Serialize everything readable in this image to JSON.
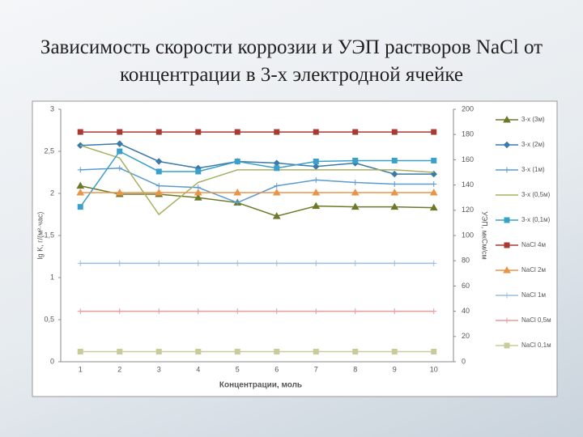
{
  "title": "Зависимость скорости коррозии и УЭП растворов NaCl от концентрации в 3-х электродной ячейке",
  "chart_data": {
    "type": "line",
    "xlabel": "Концентрации, моль",
    "ylabel": "lg K, г/(м²·час)",
    "y2label": "УЭП, мкСм/см",
    "categories": [
      1,
      2,
      3,
      4,
      5,
      6,
      7,
      8,
      9,
      10
    ],
    "ylim": [
      0,
      3
    ],
    "yticks": [
      0,
      {
        "value": 0.5,
        "label": "0,5"
      },
      1,
      {
        "value": 1.5,
        "label": "1,5"
      },
      2,
      {
        "value": 2.5,
        "label": "2,5"
      },
      3
    ],
    "y2lim": [
      0,
      200
    ],
    "y2ticks": [
      0,
      20,
      40,
      60,
      80,
      100,
      120,
      140,
      160,
      180,
      200
    ],
    "series": [
      {
        "name": "3-х (3м)",
        "color": "#6b7a2a",
        "marker": "triangle",
        "values": [
          2.09,
          1.99,
          1.99,
          1.95,
          1.89,
          1.73,
          1.85,
          1.84,
          1.84,
          1.83
        ]
      },
      {
        "name": "3-х (2м)",
        "color": "#3a7aa8",
        "marker": "diamond",
        "values": [
          2.57,
          2.59,
          2.38,
          2.3,
          2.38,
          2.36,
          2.32,
          2.36,
          2.23,
          2.23
        ]
      },
      {
        "name": "3-х (1м)",
        "color": "#5a9bd0",
        "marker": "plus",
        "values": [
          2.28,
          2.3,
          2.09,
          2.07,
          1.89,
          2.09,
          2.16,
          2.13,
          2.11,
          2.11
        ]
      },
      {
        "name": "3-х (0,5м)",
        "color": "#a8b060",
        "marker": "none",
        "values": [
          2.57,
          2.42,
          1.75,
          2.13,
          2.28,
          2.28,
          2.28,
          2.28,
          2.28,
          2.25
        ]
      },
      {
        "name": "3-х (0,1м)",
        "color": "#3aa0c8",
        "marker": "square",
        "values": [
          1.84,
          2.5,
          2.26,
          2.26,
          2.38,
          2.3,
          2.38,
          2.39,
          2.39,
          2.39
        ]
      },
      {
        "name": "NaCl 4м",
        "color": "#a83a32",
        "marker": "square",
        "axis": "y2",
        "values": [
          182,
          182,
          182,
          182,
          182,
          182,
          182,
          182,
          182,
          182
        ]
      },
      {
        "name": "NaCl 2м",
        "color": "#e8954a",
        "marker": "triangle",
        "axis": "y2",
        "values": [
          134,
          134,
          134,
          134,
          134,
          134,
          134,
          134,
          134,
          134
        ]
      },
      {
        "name": "NaCl 1м",
        "color": "#9cbde0",
        "marker": "plus",
        "axis": "y2",
        "values": [
          78,
          78,
          78,
          78,
          78,
          78,
          78,
          78,
          78,
          78
        ]
      },
      {
        "name": "NaCl 0,5м",
        "color": "#e89a9a",
        "marker": "plus",
        "axis": "y2",
        "values": [
          40,
          40,
          40,
          40,
          40,
          40,
          40,
          40,
          40,
          40
        ]
      },
      {
        "name": "NaCl 0,1м",
        "color": "#c8cc98",
        "marker": "square",
        "axis": "y2",
        "values": [
          8,
          8,
          8,
          8,
          8,
          8,
          8,
          8,
          8,
          8
        ]
      }
    ]
  }
}
